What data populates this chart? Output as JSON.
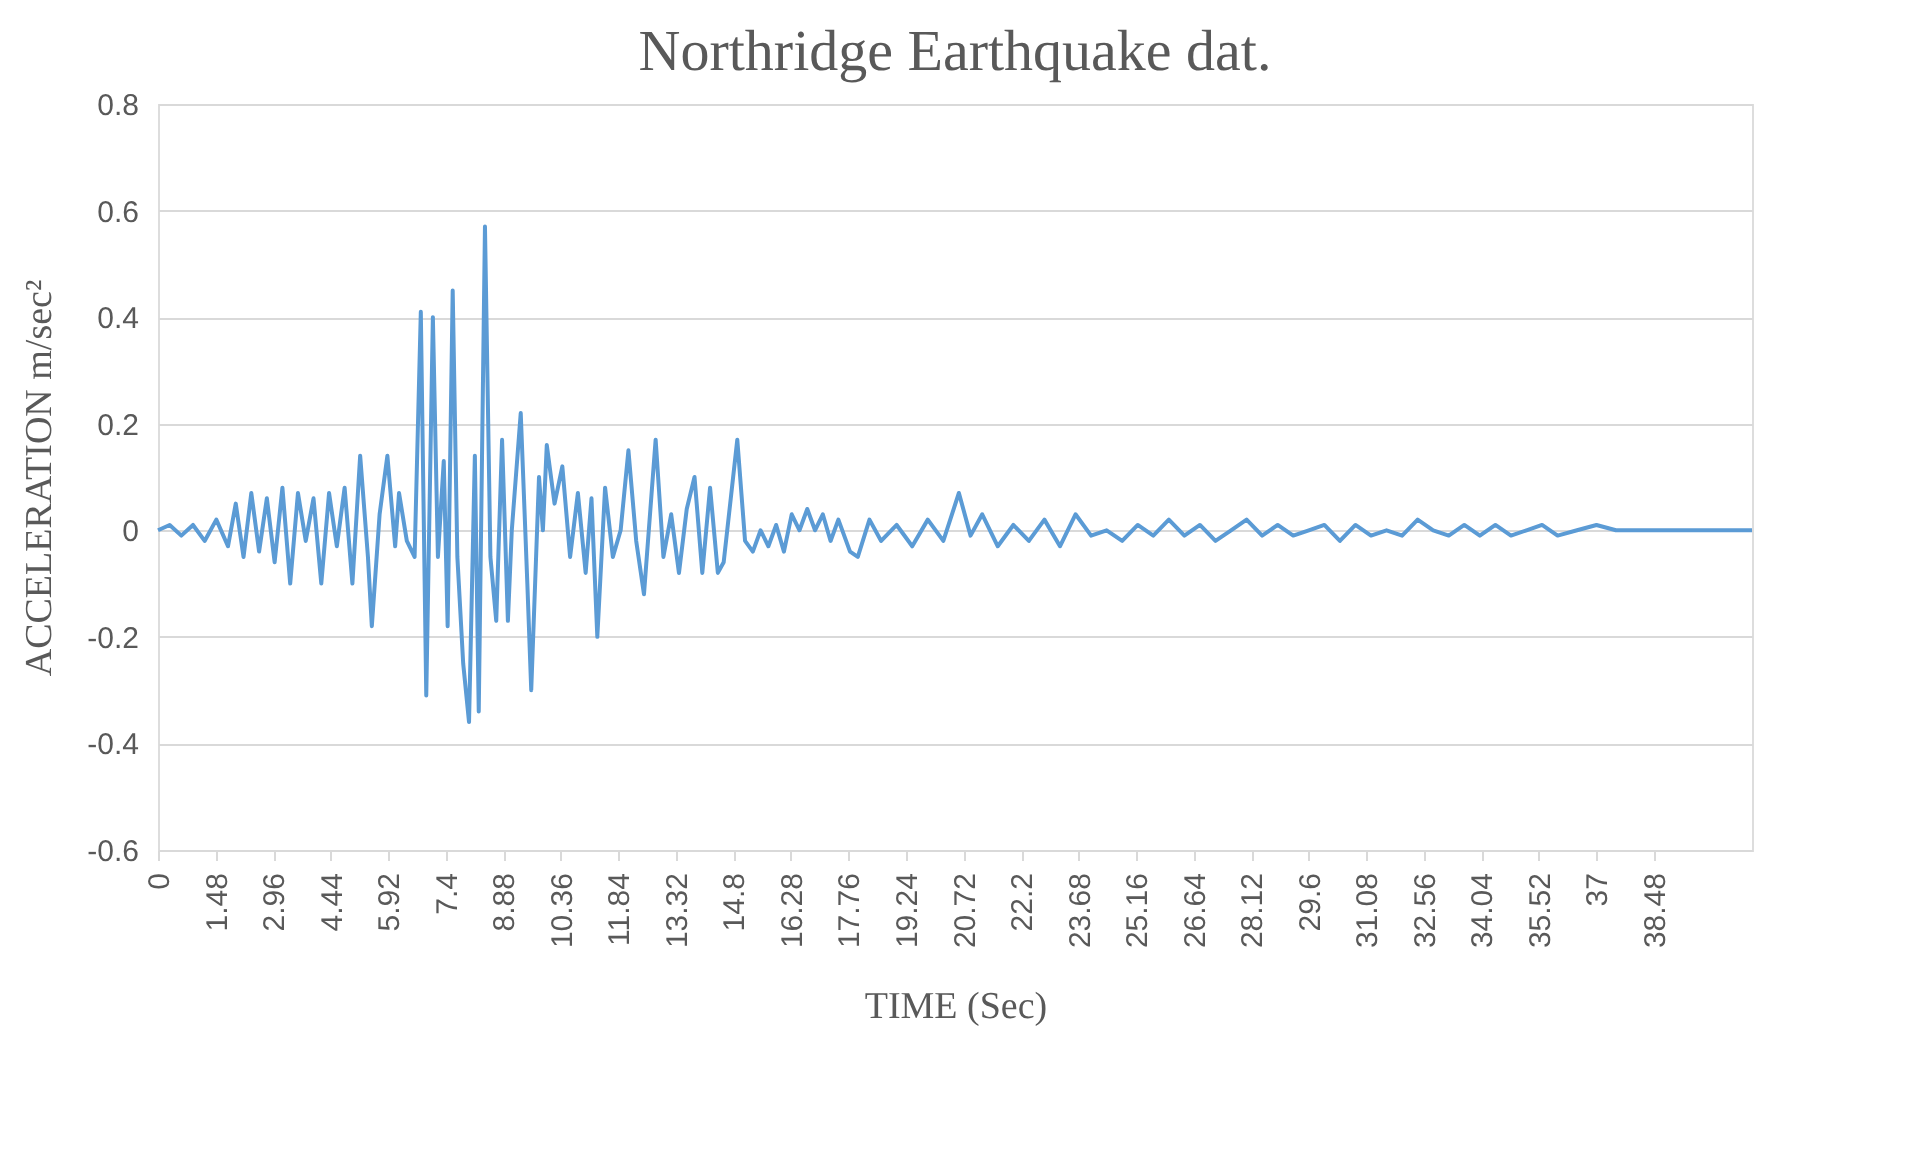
{
  "chart_data": {
    "type": "line",
    "title": "Northridge Earthquake dat.",
    "xlabel": "TIME (Sec)",
    "ylabel": "ACCELERATION m/sec²",
    "x": [
      0,
      0.3,
      0.6,
      0.9,
      1.2,
      1.5,
      1.8,
      2.0,
      2.2,
      2.4,
      2.6,
      2.8,
      3.0,
      3.2,
      3.4,
      3.6,
      3.8,
      4.0,
      4.2,
      4.4,
      4.6,
      4.8,
      5.0,
      5.2,
      5.4,
      5.5,
      5.7,
      5.9,
      6.1,
      6.2,
      6.4,
      6.6,
      6.76,
      6.9,
      7.07,
      7.2,
      7.35,
      7.45,
      7.58,
      7.7,
      7.85,
      8.0,
      8.15,
      8.25,
      8.41,
      8.55,
      8.7,
      8.85,
      9.0,
      9.1,
      9.33,
      9.5,
      9.6,
      9.8,
      9.9,
      10.0,
      10.2,
      10.4,
      10.6,
      10.8,
      11.0,
      11.15,
      11.3,
      11.5,
      11.7,
      11.9,
      12.1,
      12.3,
      12.5,
      12.8,
      13.0,
      13.2,
      13.4,
      13.6,
      13.8,
      14.0,
      14.2,
      14.4,
      14.55,
      14.9,
      15.1,
      15.3,
      15.5,
      15.7,
      15.9,
      16.1,
      16.3,
      16.5,
      16.7,
      16.9,
      17.1,
      17.3,
      17.5,
      17.8,
      18.0,
      18.3,
      18.6,
      19.0,
      19.4,
      19.8,
      20.2,
      20.6,
      20.9,
      21.2,
      21.6,
      22.0,
      22.4,
      22.8,
      23.2,
      23.6,
      24.0,
      24.4,
      24.8,
      25.2,
      25.6,
      26.0,
      26.4,
      26.8,
      27.2,
      27.6,
      28.0,
      28.4,
      28.8,
      29.2,
      29.6,
      30.0,
      30.4,
      30.8,
      31.2,
      31.6,
      32.0,
      32.4,
      32.8,
      33.2,
      33.6,
      34.0,
      34.4,
      34.8,
      35.2,
      35.6,
      36.0,
      36.5,
      37.0,
      37.5,
      38.0,
      38.5,
      39.0,
      40.0,
      41.0
    ],
    "series": [
      {
        "color": "#5b9bd5",
        "values": [
          0,
          0.01,
          -0.01,
          0.01,
          -0.02,
          0.02,
          -0.03,
          0.05,
          -0.05,
          0.07,
          -0.04,
          0.06,
          -0.06,
          0.08,
          -0.1,
          0.07,
          -0.02,
          0.06,
          -0.1,
          0.07,
          -0.03,
          0.08,
          -0.1,
          0.14,
          -0.05,
          -0.18,
          0.03,
          0.14,
          -0.03,
          0.07,
          -0.02,
          -0.05,
          0.41,
          -0.31,
          0.4,
          -0.05,
          0.13,
          -0.18,
          0.45,
          -0.05,
          -0.25,
          -0.36,
          0.14,
          -0.34,
          0.57,
          -0.05,
          -0.17,
          0.17,
          -0.17,
          0.0,
          0.22,
          -0.1,
          -0.3,
          0.1,
          0.0,
          0.16,
          0.05,
          0.12,
          -0.05,
          0.07,
          -0.08,
          0.06,
          -0.2,
          0.08,
          -0.05,
          0.0,
          0.15,
          -0.02,
          -0.12,
          0.17,
          -0.05,
          0.03,
          -0.08,
          0.04,
          0.1,
          -0.08,
          0.08,
          -0.08,
          -0.06,
          0.17,
          -0.02,
          -0.04,
          0.0,
          -0.03,
          0.01,
          -0.04,
          0.03,
          0.0,
          0.04,
          0.0,
          0.03,
          -0.02,
          0.02,
          -0.04,
          -0.05,
          0.02,
          -0.02,
          0.01,
          -0.03,
          0.02,
          -0.02,
          0.07,
          -0.01,
          0.03,
          -0.03,
          0.01,
          -0.02,
          0.02,
          -0.03,
          0.03,
          -0.01,
          0.0,
          -0.02,
          0.01,
          -0.01,
          0.02,
          -0.01,
          0.01,
          -0.02,
          0.0,
          0.02,
          -0.01,
          0.01,
          -0.01,
          0.0,
          0.01,
          -0.02,
          0.01,
          -0.01,
          0.0,
          -0.01,
          0.02,
          0.0,
          -0.01,
          0.01,
          -0.01,
          0.01,
          -0.01,
          0.0,
          0.01,
          -0.01,
          0.0,
          0.01,
          0.0,
          0.0,
          0.0,
          0.0,
          0.0,
          0.0
        ]
      }
    ],
    "xlim": [
      0,
      41
    ],
    "xticks": [
      0,
      1.48,
      2.96,
      4.44,
      5.92,
      7.4,
      8.88,
      10.36,
      11.84,
      13.32,
      14.8,
      16.28,
      17.76,
      19.24,
      20.72,
      22.2,
      23.68,
      25.16,
      26.64,
      28.12,
      29.6,
      31.08,
      32.56,
      34.04,
      35.52,
      37,
      38.48
    ],
    "ylim": [
      -0.6,
      0.8
    ],
    "yticks": [
      -0.6,
      -0.4,
      -0.2,
      0,
      0.2,
      0.4,
      0.6,
      0.8
    ],
    "grid": "y",
    "marker": "none",
    "line_style": "solid"
  }
}
